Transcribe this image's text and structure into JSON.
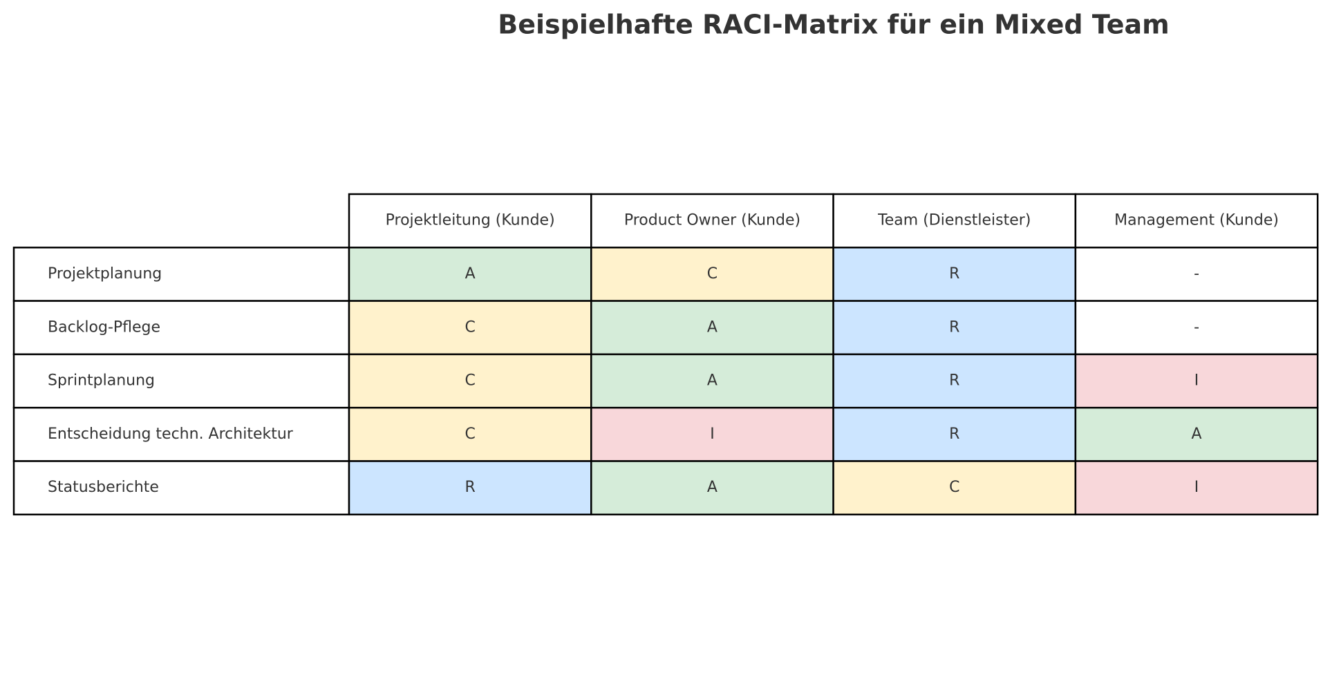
{
  "title": "Beispielhafte RACI-Matrix für ein Mixed Team",
  "table": {
    "columns": [
      "Projektleitung (Kunde)",
      "Product Owner (Kunde)",
      "Team (Dienstleister)",
      "Management (Kunde)"
    ],
    "rows": [
      {
        "label": "Projektplanung",
        "cells": [
          "A",
          "C",
          "R",
          "-"
        ]
      },
      {
        "label": "Backlog-Pflege",
        "cells": [
          "C",
          "A",
          "R",
          "-"
        ]
      },
      {
        "label": "Sprintplanung",
        "cells": [
          "C",
          "A",
          "R",
          "I"
        ]
      },
      {
        "label": "Entscheidung techn. Architektur",
        "cells": [
          "C",
          "I",
          "R",
          "A"
        ]
      },
      {
        "label": "Statusberichte",
        "cells": [
          "R",
          "A",
          "C",
          "I"
        ]
      }
    ]
  },
  "colors": {
    "A": "#d5ecd9",
    "C": "#fff2cc",
    "R": "#cce5ff",
    "I": "#f8d7da",
    "-": "#ffffff"
  }
}
